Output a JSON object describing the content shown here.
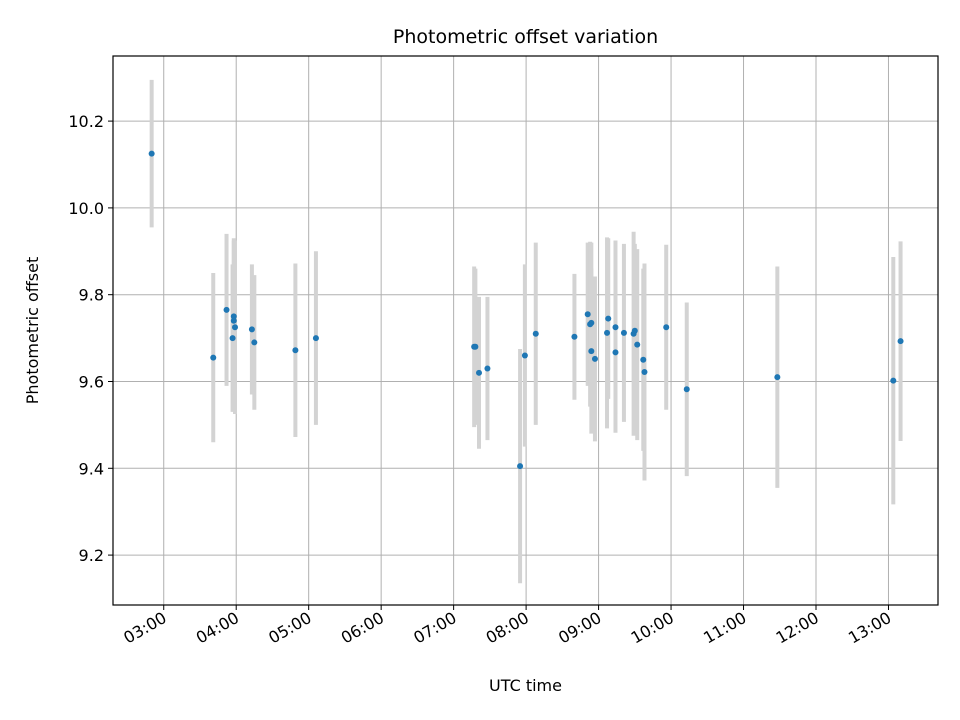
{
  "chart_data": {
    "type": "scatter",
    "title": "Photometric offset variation",
    "xlabel": "UTC time",
    "ylabel": "Photometric offset",
    "xlim": [
      "02:18",
      "13:41"
    ],
    "ylim": [
      9.085,
      10.35
    ],
    "grid": true,
    "x_ticks": [
      "03:00",
      "04:00",
      "05:00",
      "06:00",
      "07:00",
      "08:00",
      "09:00",
      "10:00",
      "11:00",
      "12:00",
      "13:00"
    ],
    "y_ticks": [
      9.2,
      9.4,
      9.6,
      9.8,
      10.0,
      10.2
    ],
    "y_tick_labels": [
      "9.2",
      "9.4",
      "9.6",
      "9.8",
      "10.0",
      "10.2"
    ],
    "colors": {
      "point": "#1f77b4",
      "errorbar": "#d3d3d3",
      "grid": "#b0b0b0"
    },
    "points": [
      {
        "t": "02:50",
        "y": 10.125,
        "err": 0.17
      },
      {
        "t": "03:41",
        "y": 9.655,
        "err": 0.195
      },
      {
        "t": "03:52",
        "y": 9.765,
        "err": 0.175
      },
      {
        "t": "03:57",
        "y": 9.7,
        "err": 0.17
      },
      {
        "t": "03:58",
        "y": 9.75,
        "err": 0.175
      },
      {
        "t": "03:58",
        "y": 9.74,
        "err": 0.19
      },
      {
        "t": "03:59",
        "y": 9.725,
        "err": 0.2
      },
      {
        "t": "04:13",
        "y": 9.72,
        "err": 0.15
      },
      {
        "t": "04:15",
        "y": 9.69,
        "err": 0.155
      },
      {
        "t": "04:49",
        "y": 9.672,
        "err": 0.2
      },
      {
        "t": "05:06",
        "y": 9.7,
        "err": 0.2
      },
      {
        "t": "07:17",
        "y": 9.68,
        "err": 0.185
      },
      {
        "t": "07:18",
        "y": 9.68,
        "err": 0.18
      },
      {
        "t": "07:21",
        "y": 9.62,
        "err": 0.175
      },
      {
        "t": "07:28",
        "y": 9.63,
        "err": 0.165
      },
      {
        "t": "07:55",
        "y": 9.405,
        "err": 0.27
      },
      {
        "t": "07:59",
        "y": 9.66,
        "err": 0.21
      },
      {
        "t": "08:08",
        "y": 9.71,
        "err": 0.21
      },
      {
        "t": "08:40",
        "y": 9.703,
        "err": 0.145
      },
      {
        "t": "08:51",
        "y": 9.755,
        "err": 0.165
      },
      {
        "t": "08:53",
        "y": 9.732,
        "err": 0.19
      },
      {
        "t": "08:54",
        "y": 9.735,
        "err": 0.185
      },
      {
        "t": "08:54",
        "y": 9.67,
        "err": 0.19
      },
      {
        "t": "08:57",
        "y": 9.652,
        "err": 0.19
      },
      {
        "t": "09:07",
        "y": 9.712,
        "err": 0.22
      },
      {
        "t": "09:08",
        "y": 9.745,
        "err": 0.185
      },
      {
        "t": "09:14",
        "y": 9.725,
        "err": 0.2
      },
      {
        "t": "09:14",
        "y": 9.667,
        "err": 0.185
      },
      {
        "t": "09:21",
        "y": 9.712,
        "err": 0.205
      },
      {
        "t": "09:29",
        "y": 9.71,
        "err": 0.235
      },
      {
        "t": "09:30",
        "y": 9.717,
        "err": 0.2
      },
      {
        "t": "09:32",
        "y": 9.685,
        "err": 0.22
      },
      {
        "t": "09:37",
        "y": 9.65,
        "err": 0.21
      },
      {
        "t": "09:38",
        "y": 9.622,
        "err": 0.25
      },
      {
        "t": "09:56",
        "y": 9.725,
        "err": 0.19
      },
      {
        "t": "10:13",
        "y": 9.582,
        "err": 0.2
      },
      {
        "t": "11:28",
        "y": 9.61,
        "err": 0.255
      },
      {
        "t": "13:04",
        "y": 9.602,
        "err": 0.285
      },
      {
        "t": "13:10",
        "y": 9.693,
        "err": 0.23
      }
    ]
  }
}
